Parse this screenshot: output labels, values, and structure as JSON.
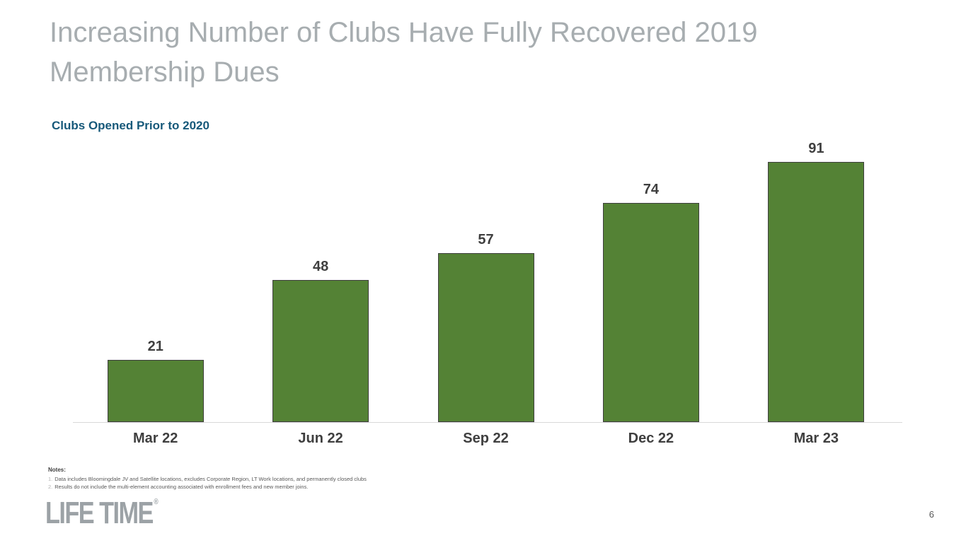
{
  "slide": {
    "title": "Increasing Number of Clubs Have Fully Recovered 2019 Membership Dues",
    "page_number": "6",
    "logo_text": "LIFE TIME",
    "logo_reg": "®"
  },
  "chart": {
    "heading": "Clubs Opened Prior to 2020"
  },
  "chart_data": {
    "type": "bar",
    "title": "Clubs Opened Prior to 2020",
    "categories": [
      "Mar 22",
      "Jun 22",
      "Sep 22",
      "Dec 22",
      "Mar 23"
    ],
    "values": [
      21,
      48,
      57,
      74,
      91
    ],
    "xlabel": "",
    "ylabel": "",
    "ylim": [
      0,
      95
    ],
    "grid": false,
    "legend": false,
    "data_labels": true,
    "bar_color": "#548235",
    "bar_border_color": "#3f3f3f"
  },
  "notes": {
    "heading": "Notes:",
    "items": [
      {
        "num": "1.",
        "text": "Data includes Bloomingdale JV and Satellite locations, excludes Corporate Region, LT Work locations, and permanently closed clubs"
      },
      {
        "num": "2.",
        "text": "Results do not include the multi-element accounting associated with enrollment fees and new member joins."
      }
    ]
  },
  "colors": {
    "title_gray": "#a7adb0",
    "heading_blue": "#17597a",
    "bar_green": "#548235",
    "label_dark": "#3f3f3f",
    "axis_line": "#d9d9d9",
    "logo_gray": "#9ca2a6"
  }
}
